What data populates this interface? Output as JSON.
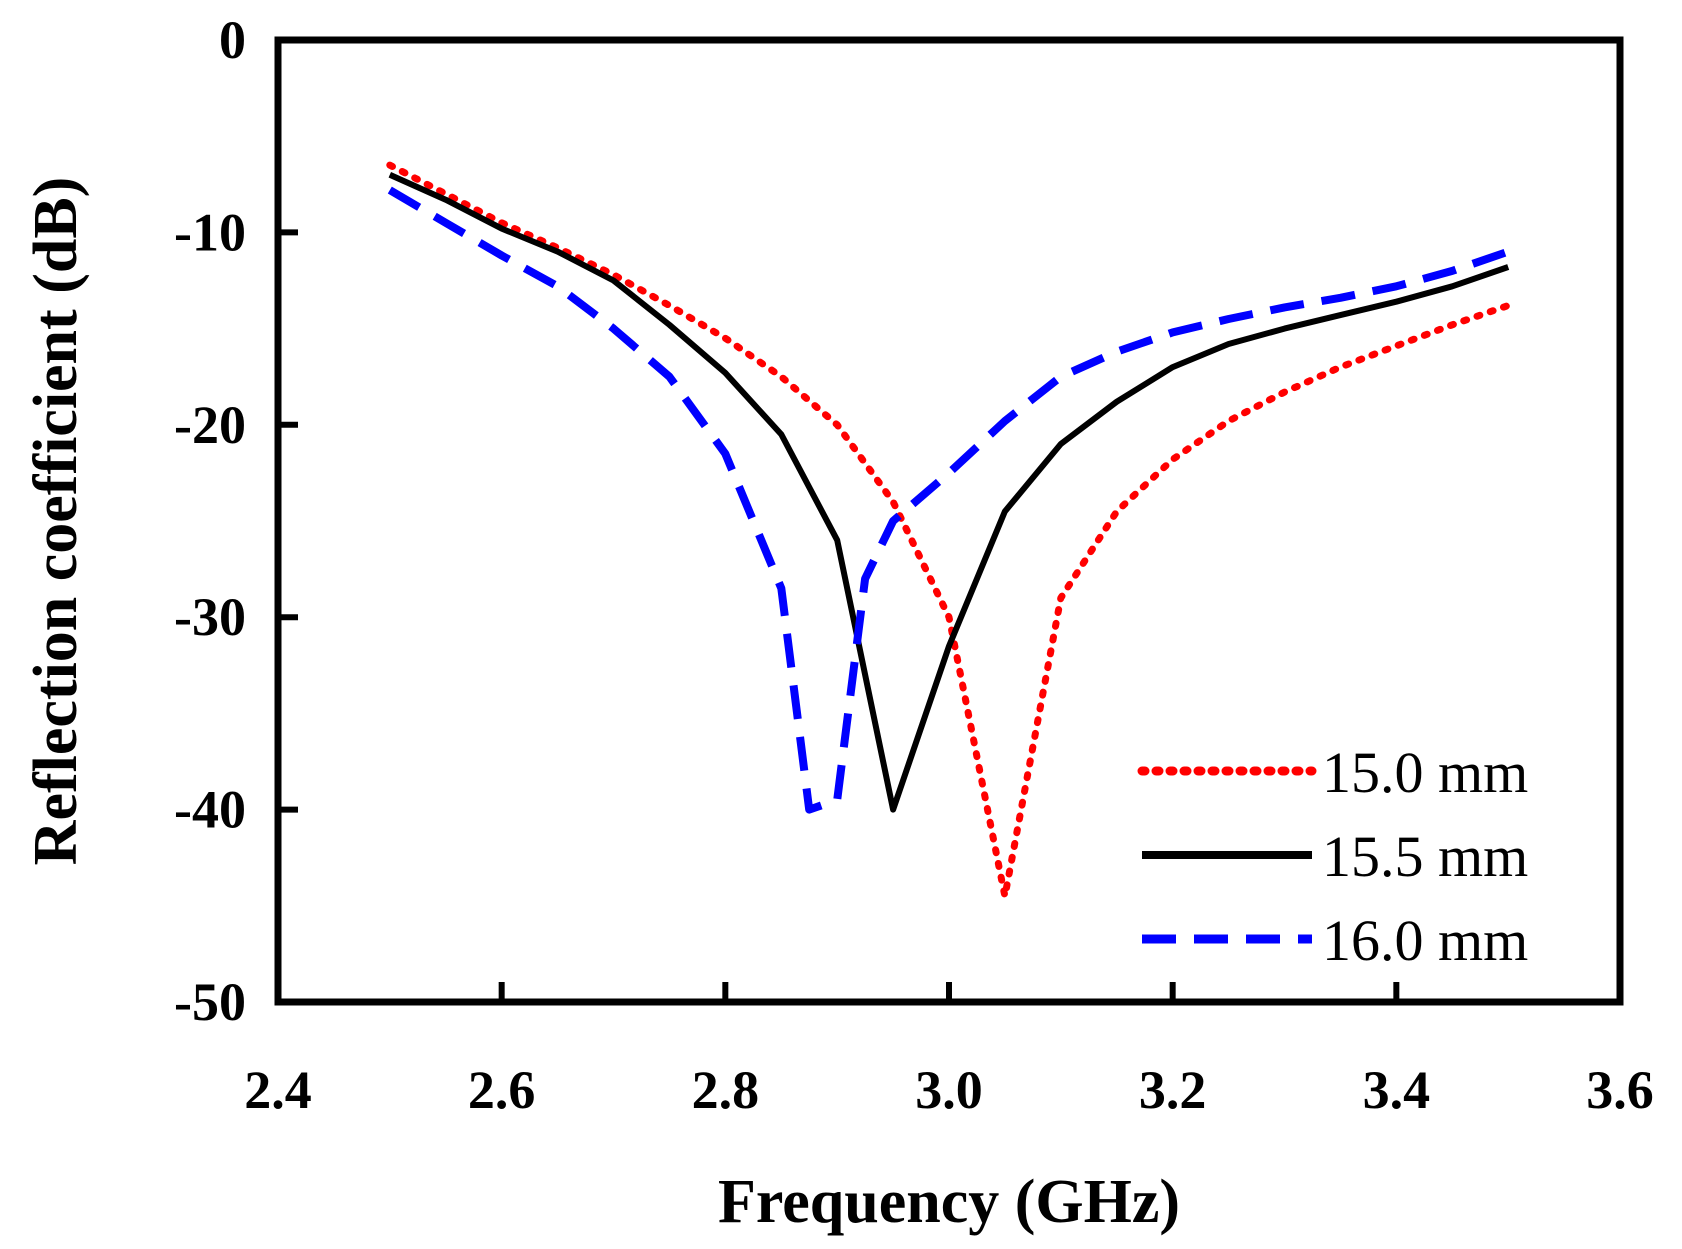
{
  "chart_data": {
    "type": "line",
    "title": "",
    "xlabel": "Frequency  (GHz)",
    "ylabel": "Reflection coefficient (dB)",
    "xlim": [
      2.4,
      3.6
    ],
    "ylim": [
      -50,
      0
    ],
    "xticks": [
      2.4,
      2.6,
      2.8,
      3.0,
      3.2,
      3.4,
      3.6
    ],
    "xtick_labels": [
      "2.4",
      "2.6",
      "2.8",
      "3.0",
      "3.2",
      "3.4",
      "3.6"
    ],
    "yticks": [
      0,
      -10,
      -20,
      -30,
      -40,
      -50
    ],
    "ytick_labels": [
      "0",
      "-10",
      "-20",
      "-30",
      "-40",
      "-50"
    ],
    "grid": false,
    "legend_position": "bottom-right",
    "series": [
      {
        "name": "15.0 mm",
        "color": "#ff0000",
        "style": "dotted",
        "x": [
          2.5,
          2.55,
          2.6,
          2.65,
          2.7,
          2.75,
          2.8,
          2.85,
          2.9,
          2.95,
          3.0,
          3.05,
          3.1,
          3.15,
          3.2,
          3.25,
          3.3,
          3.35,
          3.4,
          3.45,
          3.5
        ],
        "y": [
          -6.5,
          -8.0,
          -9.5,
          -10.8,
          -12.2,
          -13.8,
          -15.5,
          -17.5,
          -20.0,
          -24.0,
          -30.0,
          -44.5,
          -29.0,
          -24.5,
          -21.8,
          -19.8,
          -18.3,
          -17.0,
          -15.9,
          -14.8,
          -13.8
        ]
      },
      {
        "name": "15.5 mm",
        "color": "#000000",
        "style": "solid",
        "x": [
          2.5,
          2.55,
          2.6,
          2.65,
          2.7,
          2.75,
          2.8,
          2.85,
          2.9,
          2.95,
          3.0,
          3.05,
          3.1,
          3.15,
          3.2,
          3.25,
          3.3,
          3.35,
          3.4,
          3.45,
          3.5
        ],
        "y": [
          -7.0,
          -8.3,
          -9.8,
          -11.0,
          -12.5,
          -14.8,
          -17.3,
          -20.5,
          -26.0,
          -40.0,
          -31.5,
          -24.5,
          -21.0,
          -18.8,
          -17.0,
          -15.8,
          -15.0,
          -14.3,
          -13.6,
          -12.8,
          -11.8
        ]
      },
      {
        "name": "16.0 mm",
        "color": "#0000ff",
        "style": "dashed",
        "x": [
          2.5,
          2.55,
          2.6,
          2.65,
          2.7,
          2.75,
          2.8,
          2.85,
          2.875,
          2.9,
          2.925,
          2.95,
          3.0,
          3.05,
          3.1,
          3.15,
          3.2,
          3.25,
          3.3,
          3.35,
          3.4,
          3.45,
          3.5
        ],
        "y": [
          -7.8,
          -9.5,
          -11.2,
          -12.8,
          -15.0,
          -17.5,
          -21.5,
          -28.5,
          -40.0,
          -39.5,
          -28.0,
          -25.0,
          -22.5,
          -19.8,
          -17.5,
          -16.2,
          -15.2,
          -14.5,
          -13.9,
          -13.4,
          -12.8,
          -12.0,
          -11.0
        ]
      }
    ]
  }
}
